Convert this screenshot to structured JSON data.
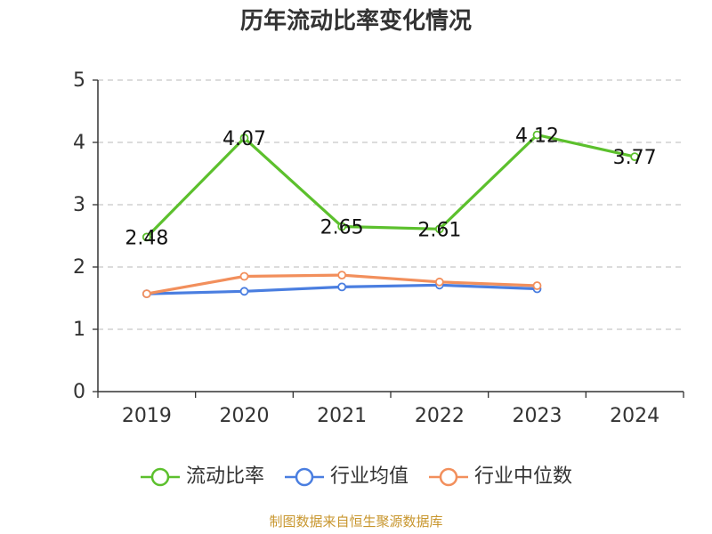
{
  "title": "历年流动比率变化情况",
  "source": "制图数据来自恒生聚源数据库",
  "chart_data": {
    "type": "line",
    "title": "历年流动比率变化情况",
    "categories": [
      "2019",
      "2020",
      "2021",
      "2022",
      "2023",
      "2024"
    ],
    "ylim": [
      0,
      5
    ],
    "yticks": [
      "0",
      "1",
      "2",
      "3",
      "4",
      "5"
    ],
    "grid": true,
    "legend_position": "bottom",
    "series": [
      {
        "name": "流动比率",
        "color": "#5cc02d",
        "values": [
          2.48,
          4.07,
          2.65,
          2.61,
          4.12,
          3.77
        ],
        "labels": [
          "2.48",
          "4.07",
          "2.65",
          "2.61",
          "4.12",
          "3.77"
        ],
        "show_labels": true
      },
      {
        "name": "行业均值",
        "color": "#4a7ee0",
        "values": [
          1.57,
          1.61,
          1.68,
          1.71,
          1.65,
          null
        ],
        "show_labels": false
      },
      {
        "name": "行业中位数",
        "color": "#f28f5c",
        "values": [
          1.57,
          1.85,
          1.87,
          1.76,
          1.7,
          null
        ],
        "show_labels": false
      }
    ]
  }
}
